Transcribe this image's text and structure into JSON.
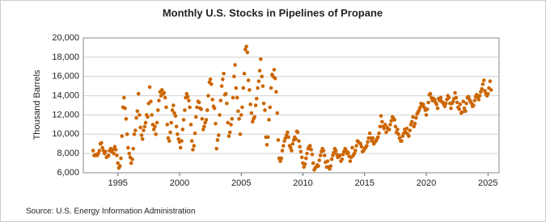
{
  "chart_data": {
    "type": "scatter",
    "title": "Monthly U.S. Stocks in Pipelines of Propane",
    "y_label": "Thousand Barrels",
    "source": "Source: U.S. Energy Information Administration",
    "color": "#cc6600",
    "grid": true,
    "xlim": [
      1992.2,
      2025.9
    ],
    "xticks": [
      1995,
      2000,
      2005,
      2010,
      2015,
      2020,
      2025
    ],
    "ylim": [
      6000,
      20000
    ],
    "yticks": [
      {
        "value": 6000,
        "label": "6,000"
      },
      {
        "value": 8000,
        "label": "8,000"
      },
      {
        "value": 10000,
        "label": "10,000"
      },
      {
        "value": 12000,
        "label": "12,000"
      },
      {
        "value": 14000,
        "label": "14,000"
      },
      {
        "value": 16000,
        "label": "16,000"
      },
      {
        "value": 18000,
        "label": "18,000"
      },
      {
        "value": 20000,
        "label": "20,000"
      }
    ],
    "x": [
      1993,
      1993.08,
      1993.17,
      1993.25,
      1993.33,
      1993.42,
      1993.5,
      1993.58,
      1993.67,
      1993.75,
      1993.83,
      1993.92,
      1994,
      1994.08,
      1994.17,
      1994.25,
      1994.33,
      1994.42,
      1994.5,
      1994.58,
      1994.67,
      1994.75,
      1994.83,
      1994.92,
      1995,
      1995.08,
      1995.17,
      1995.25,
      1995.33,
      1995.42,
      1995.5,
      1995.58,
      1995.67,
      1995.75,
      1995.83,
      1995.92,
      1996,
      1996.08,
      1996.17,
      1996.25,
      1996.33,
      1996.42,
      1996.5,
      1996.58,
      1996.67,
      1996.75,
      1996.83,
      1996.92,
      1997,
      1997.08,
      1997.17,
      1997.25,
      1997.33,
      1997.42,
      1997.5,
      1997.58,
      1997.67,
      1997.75,
      1997.83,
      1997.92,
      1998,
      1998.08,
      1998.17,
      1998.25,
      1998.33,
      1998.42,
      1998.5,
      1998.58,
      1998.67,
      1998.75,
      1998.83,
      1998.92,
      1999,
      1999.08,
      1999.17,
      1999.25,
      1999.33,
      1999.42,
      1999.5,
      1999.58,
      1999.67,
      1999.75,
      1999.83,
      1999.92,
      2000,
      2000.08,
      2000.17,
      2000.25,
      2000.33,
      2000.42,
      2000.5,
      2000.58,
      2000.67,
      2000.75,
      2000.83,
      2000.92,
      2001,
      2001.08,
      2001.17,
      2001.25,
      2001.33,
      2001.42,
      2001.5,
      2001.58,
      2001.67,
      2001.75,
      2001.83,
      2001.92,
      2002,
      2002.08,
      2002.17,
      2002.25,
      2002.33,
      2002.42,
      2002.5,
      2002.58,
      2002.67,
      2002.75,
      2002.83,
      2002.92,
      2003,
      2003.08,
      2003.17,
      2003.25,
      2003.33,
      2003.42,
      2003.5,
      2003.58,
      2003.67,
      2003.75,
      2003.83,
      2003.92,
      2004,
      2004.08,
      2004.17,
      2004.25,
      2004.33,
      2004.42,
      2004.5,
      2004.58,
      2004.67,
      2004.75,
      2004.83,
      2004.92,
      2005,
      2005.08,
      2005.17,
      2005.25,
      2005.33,
      2005.42,
      2005.5,
      2005.58,
      2005.67,
      2005.75,
      2005.83,
      2005.92,
      2006,
      2006.08,
      2006.17,
      2006.25,
      2006.33,
      2006.42,
      2006.5,
      2006.58,
      2006.67,
      2006.75,
      2006.83,
      2006.92,
      2007,
      2007.08,
      2007.17,
      2007.25,
      2007.33,
      2007.42,
      2007.5,
      2007.58,
      2007.67,
      2007.75,
      2007.83,
      2007.92,
      2008,
      2008.08,
      2008.17,
      2008.25,
      2008.33,
      2008.42,
      2008.5,
      2008.58,
      2008.67,
      2008.75,
      2008.83,
      2008.92,
      2009,
      2009.08,
      2009.17,
      2009.25,
      2009.33,
      2009.42,
      2009.5,
      2009.58,
      2009.67,
      2009.75,
      2009.83,
      2009.92,
      2010,
      2010.08,
      2010.17,
      2010.25,
      2010.33,
      2010.42,
      2010.5,
      2010.58,
      2010.67,
      2010.75,
      2010.83,
      2010.92,
      2011,
      2011.08,
      2011.17,
      2011.25,
      2011.33,
      2011.42,
      2011.5,
      2011.58,
      2011.67,
      2011.75,
      2011.83,
      2011.92,
      2012,
      2012.08,
      2012.17,
      2012.25,
      2012.33,
      2012.42,
      2012.5,
      2012.58,
      2012.67,
      2012.75,
      2012.83,
      2012.92,
      2013,
      2013.08,
      2013.17,
      2013.25,
      2013.33,
      2013.42,
      2013.5,
      2013.58,
      2013.67,
      2013.75,
      2013.83,
      2013.92,
      2014,
      2014.08,
      2014.17,
      2014.25,
      2014.33,
      2014.42,
      2014.5,
      2014.58,
      2014.67,
      2014.75,
      2014.83,
      2014.92,
      2015,
      2015.08,
      2015.17,
      2015.25,
      2015.33,
      2015.42,
      2015.5,
      2015.58,
      2015.67,
      2015.75,
      2015.83,
      2015.92,
      2016,
      2016.08,
      2016.17,
      2016.25,
      2016.33,
      2016.42,
      2016.5,
      2016.58,
      2016.67,
      2016.75,
      2016.83,
      2016.92,
      2017,
      2017.08,
      2017.17,
      2017.25,
      2017.33,
      2017.42,
      2017.5,
      2017.58,
      2017.67,
      2017.75,
      2017.83,
      2017.92,
      2018,
      2018.08,
      2018.17,
      2018.25,
      2018.33,
      2018.42,
      2018.5,
      2018.58,
      2018.67,
      2018.75,
      2018.83,
      2018.92,
      2019,
      2019.08,
      2019.17,
      2019.25,
      2019.33,
      2019.42,
      2019.5,
      2019.58,
      2019.67,
      2019.75,
      2019.83,
      2019.92,
      2020,
      2020.08,
      2020.17,
      2020.25,
      2020.33,
      2020.42,
      2020.5,
      2020.58,
      2020.67,
      2020.75,
      2020.83,
      2020.92,
      2021,
      2021.08,
      2021.17,
      2021.25,
      2021.33,
      2021.42,
      2021.5,
      2021.58,
      2021.67,
      2021.75,
      2021.83,
      2021.92,
      2022,
      2022.08,
      2022.17,
      2022.25,
      2022.33,
      2022.42,
      2022.5,
      2022.58,
      2022.67,
      2022.75,
      2022.83,
      2022.92,
      2023,
      2023.08,
      2023.17,
      2023.25,
      2023.33,
      2023.42,
      2023.5,
      2023.58,
      2023.67,
      2023.75,
      2023.83,
      2023.92,
      2024,
      2024.08,
      2024.17,
      2024.25,
      2024.33,
      2024.42,
      2024.5,
      2024.58,
      2024.67,
      2024.75,
      2024.83,
      2024.92,
      2025,
      2025.08,
      2025.17,
      2025.25
    ],
    "values": [
      8300,
      7800,
      7800,
      7900,
      7800,
      8000,
      8300,
      9000,
      9100,
      8600,
      8300,
      8000,
      8200,
      7600,
      7700,
      7800,
      8300,
      8500,
      8200,
      8400,
      8000,
      8700,
      8400,
      7800,
      7000,
      6500,
      6700,
      7500,
      9800,
      12800,
      13800,
      12700,
      11600,
      10000,
      8600,
      8000,
      7600,
      7000,
      7400,
      8500,
      10000,
      10400,
      11700,
      12400,
      14200,
      12000,
      10700,
      9900,
      9500,
      10400,
      10800,
      11200,
      12000,
      11800,
      13200,
      14900,
      13400,
      12000,
      11000,
      10500,
      10800,
      10000,
      11200,
      12500,
      13500,
      14400,
      14000,
      14600,
      14200,
      14300,
      13800,
      12800,
      11000,
      9600,
      9300,
      10200,
      11200,
      12500,
      13000,
      12200,
      11900,
      10800,
      10000,
      9500,
      9200,
      8600,
      9300,
      10500,
      11500,
      12500,
      13800,
      14200,
      13900,
      13500,
      12800,
      11000,
      9300,
      8400,
      8800,
      10100,
      11800,
      12800,
      13400,
      13300,
      12700,
      12600,
      11600,
      10500,
      10800,
      11200,
      11500,
      12500,
      14000,
      15400,
      15700,
      15200,
      13600,
      12900,
      12700,
      11100,
      8500,
      9400,
      9900,
      12000,
      13500,
      15000,
      15700,
      16300,
      14100,
      14200,
      13200,
      11200,
      9800,
      10200,
      11000,
      11600,
      13800,
      16000,
      17200,
      14800,
      13800,
      12400,
      11600,
      10000,
      12000,
      12800,
      14800,
      16300,
      18800,
      19100,
      18500,
      15600,
      14600,
      13100,
      12200,
      11300,
      11600,
      11800,
      13000,
      13700,
      14800,
      15500,
      16600,
      17800,
      16000,
      15000,
      13200,
      12500,
      9700,
      8900,
      9700,
      11500,
      12800,
      14800,
      16200,
      16000,
      16700,
      15800,
      14400,
      12200,
      9400,
      7500,
      7200,
      7500,
      8300,
      8800,
      9300,
      9600,
      9900,
      10200,
      9700,
      8800,
      8600,
      8300,
      9000,
      9400,
      9700,
      9500,
      10300,
      10200,
      9300,
      8700,
      8200,
      7600,
      7000,
      6600,
      6900,
      7500,
      8000,
      8500,
      8700,
      8800,
      8400,
      7900,
      7000,
      6300,
      6500,
      6600,
      6800,
      6700,
      7300,
      7800,
      8200,
      8500,
      8300,
      7800,
      7100,
      6600,
      7200,
      6600,
      6400,
      6700,
      7400,
      7800,
      8100,
      8500,
      8300,
      7900,
      7600,
      7700,
      7800,
      7200,
      7400,
      7900,
      8200,
      8500,
      8300,
      8000,
      8100,
      7700,
      7200,
      7600,
      8600,
      7800,
      8000,
      8300,
      8800,
      9300,
      9200,
      9100,
      9000,
      8700,
      8200,
      8300,
      8500,
      8600,
      8800,
      9200,
      9600,
      10100,
      9600,
      9300,
      9600,
      9000,
      9200,
      9300,
      9500,
      9700,
      10100,
      10800,
      11900,
      11300,
      10800,
      10600,
      11000,
      10200,
      10700,
      10500,
      10500,
      11000,
      11400,
      11800,
      11700,
      11500,
      10800,
      10200,
      10500,
      10000,
      9600,
      9300,
      9300,
      9800,
      10100,
      10500,
      10200,
      10600,
      10000,
      9800,
      10400,
      11000,
      11300,
      11800,
      10800,
      11100,
      11700,
      12100,
      12300,
      12500,
      12800,
      13200,
      13000,
      13100,
      12800,
      12500,
      12000,
      12600,
      13300,
      14100,
      14200,
      13800,
      13500,
      13700,
      13600,
      13300,
      13100,
      12700,
      13700,
      13500,
      13800,
      13400,
      13300,
      13100,
      12900,
      13200,
      13600,
      14000,
      13800,
      13200,
      12700,
      13200,
      13400,
      13700,
      14300,
      13800,
      13300,
      12800,
      12600,
      13100,
      12200,
      12300,
      13400,
      12700,
      12400,
      13200,
      13800,
      13900,
      13600,
      13400,
      13200,
      12900,
      13000,
      13500,
      13900,
      14100,
      13800,
      13600,
      14000,
      14400,
      14700,
      15200,
      15600,
      14500,
      14200,
      14000,
      14200,
      14800,
      15500,
      14600
    ]
  }
}
